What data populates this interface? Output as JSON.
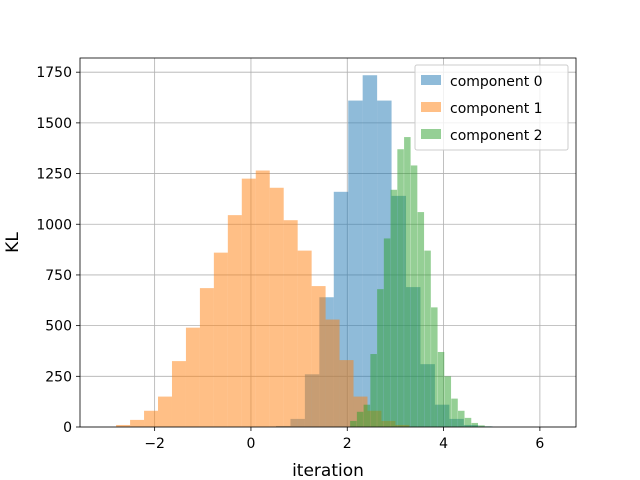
{
  "chart_data": {
    "type": "bar",
    "subtype": "histogram",
    "title": "",
    "xlabel": "iteration",
    "ylabel": "KL",
    "xlim": [
      -3.55,
      6.75
    ],
    "ylim": [
      0,
      1820
    ],
    "xticks": [
      -2,
      0,
      2,
      4,
      6
    ],
    "xtick_labels": [
      "−2",
      "0",
      "2",
      "4",
      "6"
    ],
    "yticks": [
      0,
      250,
      500,
      750,
      1000,
      1250,
      1500,
      1750
    ],
    "ytick_labels": [
      "0",
      "250",
      "500",
      "750",
      "1000",
      "1250",
      "1500",
      "1750"
    ],
    "grid": true,
    "legend_position": "top-right",
    "series": [
      {
        "name": "component 0",
        "color": "#1f77b4",
        "opacity": 0.5,
        "bin_width": 0.3,
        "bins": [
          {
            "x0": 0.52,
            "count": 5
          },
          {
            "x0": 0.82,
            "count": 40
          },
          {
            "x0": 1.12,
            "count": 260
          },
          {
            "x0": 1.42,
            "count": 640
          },
          {
            "x0": 1.72,
            "count": 1160
          },
          {
            "x0": 2.02,
            "count": 1610
          },
          {
            "x0": 2.32,
            "count": 1735
          },
          {
            "x0": 2.62,
            "count": 1610
          },
          {
            "x0": 2.92,
            "count": 1140
          },
          {
            "x0": 3.22,
            "count": 690
          },
          {
            "x0": 3.52,
            "count": 310
          },
          {
            "x0": 3.82,
            "count": 110
          },
          {
            "x0": 4.12,
            "count": 40
          },
          {
            "x0": 4.42,
            "count": 10
          },
          {
            "x0": 4.72,
            "count": 3
          }
        ]
      },
      {
        "name": "component 1",
        "color": "#ff7f0e",
        "opacity": 0.5,
        "bin_width": 0.29,
        "bins": [
          {
            "x0": -2.8,
            "count": 10
          },
          {
            "x0": -2.51,
            "count": 35
          },
          {
            "x0": -2.22,
            "count": 80
          },
          {
            "x0": -1.93,
            "count": 150
          },
          {
            "x0": -1.64,
            "count": 325
          },
          {
            "x0": -1.35,
            "count": 490
          },
          {
            "x0": -1.06,
            "count": 685
          },
          {
            "x0": -0.77,
            "count": 860
          },
          {
            "x0": -0.48,
            "count": 1045
          },
          {
            "x0": -0.19,
            "count": 1225
          },
          {
            "x0": 0.1,
            "count": 1265
          },
          {
            "x0": 0.39,
            "count": 1180
          },
          {
            "x0": 0.68,
            "count": 1020
          },
          {
            "x0": 0.97,
            "count": 870
          },
          {
            "x0": 1.26,
            "count": 695
          },
          {
            "x0": 1.55,
            "count": 530
          },
          {
            "x0": 1.84,
            "count": 330
          },
          {
            "x0": 2.13,
            "count": 150
          },
          {
            "x0": 2.42,
            "count": 80
          },
          {
            "x0": 2.71,
            "count": 30
          },
          {
            "x0": 3.0,
            "count": 10
          }
        ]
      },
      {
        "name": "component 2",
        "color": "#2ca02c",
        "opacity": 0.5,
        "bin_width": 0.135,
        "bins": [
          {
            "x0": 2.06,
            "count": 30
          },
          {
            "x0": 2.2,
            "count": 75
          },
          {
            "x0": 2.34,
            "count": 110
          },
          {
            "x0": 2.48,
            "count": 360
          },
          {
            "x0": 2.62,
            "count": 680
          },
          {
            "x0": 2.76,
            "count": 930
          },
          {
            "x0": 2.9,
            "count": 1170
          },
          {
            "x0": 3.04,
            "count": 1370
          },
          {
            "x0": 3.18,
            "count": 1430
          },
          {
            "x0": 3.32,
            "count": 1290
          },
          {
            "x0": 3.46,
            "count": 1060
          },
          {
            "x0": 3.6,
            "count": 870
          },
          {
            "x0": 3.74,
            "count": 590
          },
          {
            "x0": 3.88,
            "count": 370
          },
          {
            "x0": 4.02,
            "count": 250
          },
          {
            "x0": 4.16,
            "count": 140
          },
          {
            "x0": 4.3,
            "count": 80
          },
          {
            "x0": 4.44,
            "count": 45
          },
          {
            "x0": 4.58,
            "count": 20
          },
          {
            "x0": 4.72,
            "count": 8
          },
          {
            "x0": 4.86,
            "count": 3
          }
        ]
      }
    ]
  }
}
